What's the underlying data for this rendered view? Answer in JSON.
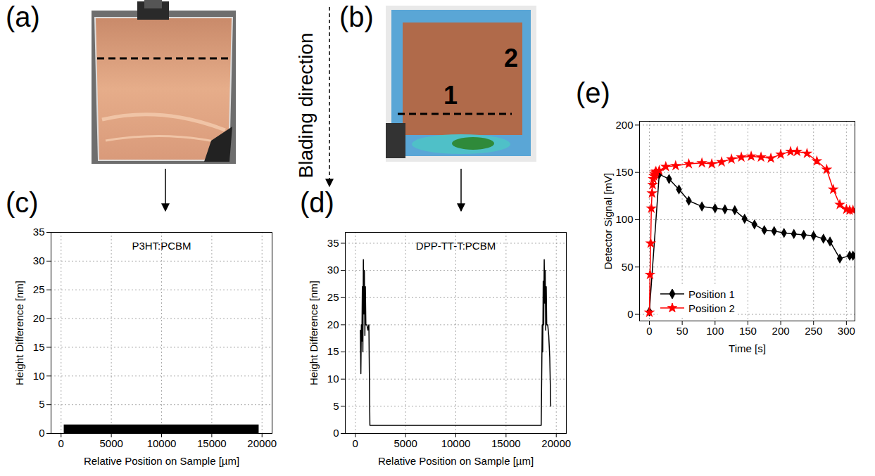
{
  "photos": [
    {
      "panel": "(a)"
    },
    {
      "panel": "(b)",
      "position_labels": [
        "1",
        "2"
      ]
    }
  ],
  "annotation": "Blading direction",
  "chart_data": [
    {
      "panel": "(c)",
      "type": "area",
      "title": "P3HT:PCBM",
      "x_label": "Relative Position on Sample [µm]",
      "y_label": "Height Difference [nm]",
      "x": [
        300,
        19700
      ],
      "values": [
        1.5,
        1.5
      ],
      "color": "#000000",
      "xlim": [
        -1000,
        21000
      ],
      "xticks": [
        0,
        5000,
        10000,
        15000,
        20000
      ],
      "ylim": [
        0,
        35
      ],
      "yticks": [
        0,
        5,
        10,
        15,
        20,
        25,
        30,
        35
      ],
      "grid": true
    },
    {
      "panel": "(d)",
      "type": "line",
      "title": "DPP-TT-T:PCBM",
      "x_label": "Relative Position on Sample [µm]",
      "y_label": "Height Difference [nm]",
      "x": [
        500,
        550,
        600,
        650,
        700,
        750,
        800,
        850,
        900,
        950,
        1000,
        1050,
        1150,
        1250,
        1350,
        1450,
        18500,
        18600,
        18650,
        18700,
        18750,
        18800,
        18850,
        18900,
        18950,
        19000,
        19050,
        19150,
        19250,
        19350,
        19450
      ],
      "values": [
        19,
        11,
        20,
        17,
        27,
        15,
        32,
        22,
        30,
        18,
        27,
        20,
        20,
        19,
        20,
        1.5,
        1.5,
        20,
        15,
        28,
        20,
        32,
        24,
        30,
        19,
        27,
        20,
        20,
        18,
        14,
        5
      ],
      "color": "#000000",
      "xlim": [
        -1000,
        21000
      ],
      "xticks": [
        0,
        5000,
        10000,
        15000,
        20000
      ],
      "ylim": [
        0,
        37
      ],
      "yticks": [
        0,
        5,
        10,
        15,
        20,
        25,
        30,
        35
      ],
      "grid": true
    },
    {
      "panel": "(e)",
      "type": "line",
      "x_label": "Time [s]",
      "y_label": "Detector Signal [mV]",
      "series": [
        {
          "name": "Position 1",
          "color": "#000000",
          "marker": "diamond",
          "x": [
            0,
            15,
            30,
            45,
            60,
            80,
            100,
            115,
            130,
            145,
            160,
            175,
            190,
            205,
            220,
            235,
            250,
            265,
            275,
            290,
            305,
            310
          ],
          "values": [
            3,
            148,
            143,
            132,
            120,
            114,
            112,
            111,
            110,
            101,
            95,
            89,
            88,
            86,
            85,
            84,
            83,
            80,
            77,
            59,
            62,
            62
          ]
        },
        {
          "name": "Position 2",
          "color": "#ff0000",
          "marker": "star",
          "x": [
            0,
            1,
            2,
            3,
            4,
            5,
            6,
            7,
            8,
            9,
            10,
            15,
            25,
            40,
            60,
            80,
            95,
            110,
            125,
            140,
            155,
            170,
            185,
            200,
            215,
            225,
            240,
            255,
            270,
            280,
            290,
            300,
            305,
            310
          ],
          "values": [
            2,
            42,
            75,
            112,
            128,
            137,
            143,
            146,
            148,
            150,
            151,
            152,
            156,
            157,
            159,
            160,
            159,
            161,
            164,
            166,
            167,
            166,
            165,
            169,
            172,
            172,
            170,
            162,
            153,
            132,
            116,
            111,
            110,
            110
          ]
        }
      ],
      "legend": "lower left",
      "xlim": [
        -15,
        313
      ],
      "xticks": [
        0,
        50,
        100,
        150,
        200,
        250,
        300
      ],
      "ylim": [
        -7,
        204
      ],
      "yticks": [
        0,
        50,
        100,
        150,
        200
      ],
      "grid": true
    }
  ]
}
